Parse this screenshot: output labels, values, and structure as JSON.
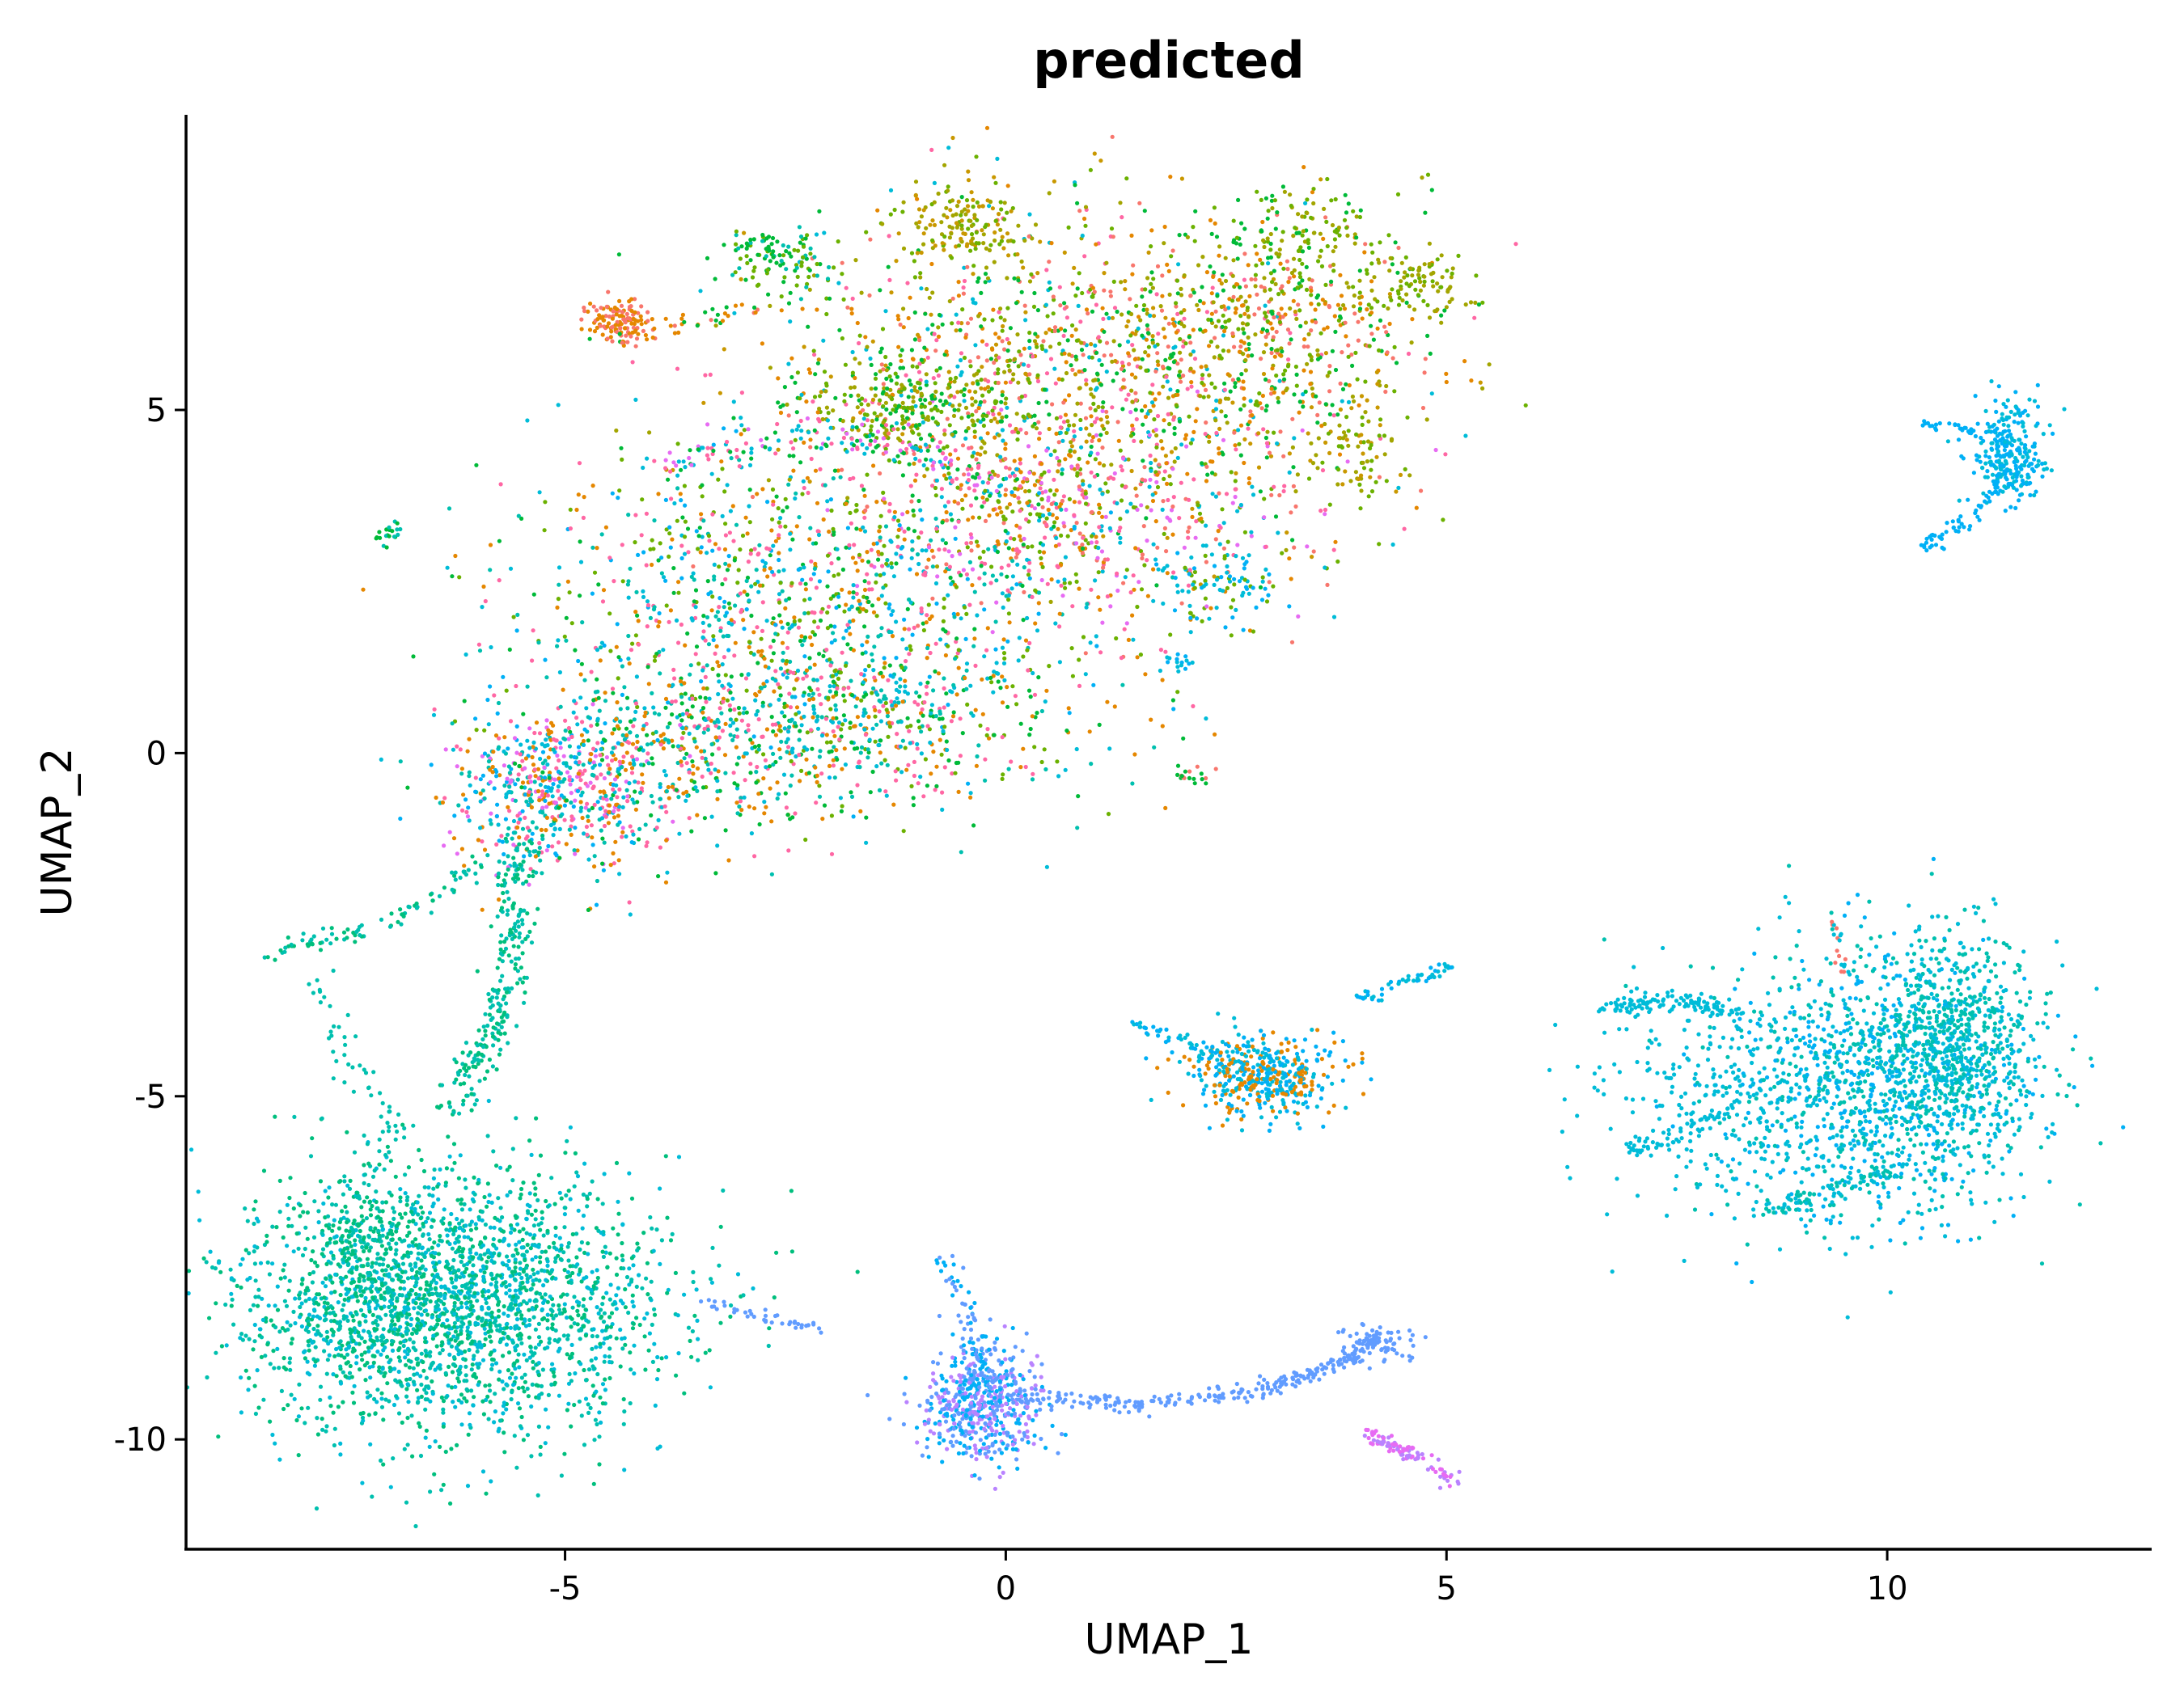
{
  "chart_data": {
    "type": "scatter",
    "title": "predicted",
    "xlabel": "UMAP_1",
    "ylabel": "UMAP_2",
    "xlim": [
      -9.3,
      13.0
    ],
    "ylim": [
      -11.6,
      9.3
    ],
    "xticks": [
      -5,
      0,
      5,
      10
    ],
    "yticks": [
      5,
      0,
      -5,
      -10
    ],
    "xtick_labels": [
      "-5",
      "0",
      "5",
      "10"
    ],
    "ytick_labels": [
      "5",
      "0",
      "-5",
      "-10"
    ],
    "legend": "none",
    "grid": false,
    "point_size": "small",
    "palette": [
      "#F8766D",
      "#E58700",
      "#C99800",
      "#A3A500",
      "#6BB100",
      "#00BA38",
      "#00BF7D",
      "#00C0AF",
      "#00BCD8",
      "#00B0F6",
      "#619CFF",
      "#B983FF",
      "#E76BF3",
      "#FD61D1",
      "#FF67A4"
    ],
    "clusters": [
      {
        "cx": 0.5,
        "cy": 5.5,
        "sx": 1.7,
        "sy": 1.2,
        "n": 1300,
        "colors": [
          "#F8766D",
          "#E58700",
          "#A3A500",
          "#6BB100",
          "#00BA38",
          "#C99800",
          "#FF67A4",
          "#00BCD8"
        ]
      },
      {
        "cx": 3.0,
        "cy": 6.2,
        "sx": 1.0,
        "sy": 0.8,
        "n": 500,
        "colors": [
          "#A3A500",
          "#6BB100",
          "#E58700",
          "#00BA38",
          "#F8766D"
        ]
      },
      {
        "cx": 0.8,
        "cy": 3.4,
        "sx": 1.4,
        "sy": 0.8,
        "n": 600,
        "colors": [
          "#FF67A4",
          "#E76BF3",
          "#F8766D",
          "#00BCD8",
          "#6BB100",
          "#E58700"
        ]
      },
      {
        "cx": -2.3,
        "cy": 2.3,
        "sx": 1.6,
        "sy": 1.1,
        "n": 1000,
        "colors": [
          "#00BCD8",
          "#00C0AF",
          "#00BA38",
          "#FF67A4",
          "#6BB100",
          "#E58700",
          "#00B0F6"
        ]
      },
      {
        "cx": -1.8,
        "cy": 0.6,
        "sx": 1.5,
        "sy": 0.7,
        "n": 700,
        "colors": [
          "#00BCD8",
          "#00C0AF",
          "#00BA38",
          "#FF67A4",
          "#E58700",
          "#6BB100"
        ]
      },
      {
        "cx": -5.2,
        "cy": -0.6,
        "sx": 0.55,
        "sy": 0.55,
        "n": 500,
        "colors": [
          "#00BCD8",
          "#00B0F6",
          "#FF67A4",
          "#E58700",
          "#00C0AF",
          "#E76BF3"
        ]
      },
      {
        "cx": -3.8,
        "cy": -0.2,
        "sx": 0.9,
        "sy": 0.7,
        "n": 350,
        "colors": [
          "#00BCD8",
          "#00C0AF",
          "#00BA38",
          "#FF67A4",
          "#E58700"
        ]
      },
      {
        "cx": -0.4,
        "cy": 7.7,
        "sx": 0.35,
        "sy": 0.3,
        "n": 150,
        "colors": [
          "#A3A500",
          "#6BB100",
          "#C99800"
        ]
      },
      {
        "cx": 3.3,
        "cy": 7.6,
        "sx": 0.4,
        "sy": 0.3,
        "n": 110,
        "colors": [
          "#A3A500",
          "#6BB100",
          "#00BA38"
        ]
      },
      {
        "cx": -2.6,
        "cy": 7.2,
        "sx": 0.3,
        "sy": 0.25,
        "n": 110,
        "colors": [
          "#00BA38",
          "#00C0AF",
          "#6BB100"
        ]
      },
      {
        "cx": -4.4,
        "cy": 6.3,
        "sx": 0.18,
        "sy": 0.15,
        "n": 120,
        "colors": [
          "#E58700",
          "#F8766D"
        ]
      },
      {
        "cx": 4.7,
        "cy": 6.9,
        "sx": 0.3,
        "sy": 0.2,
        "n": 80,
        "colors": [
          "#A3A500",
          "#6BB100"
        ]
      },
      {
        "cx": 4.0,
        "cy": 4.5,
        "sx": 0.25,
        "sy": 0.5,
        "n": 80,
        "colors": [
          "#A3A500",
          "#6BB100",
          "#C99800"
        ]
      },
      {
        "cx": -1.0,
        "cy": 5.1,
        "sx": 0.6,
        "sy": 0.25,
        "n": 200,
        "colors": [
          "#6BB100",
          "#A3A500",
          "#00BA38"
        ]
      },
      {
        "cx": 2.5,
        "cy": 2.4,
        "sx": 0.35,
        "sy": 0.3,
        "n": 80,
        "colors": [
          "#00BCD8",
          "#00B0F6",
          "#6BB100"
        ]
      },
      {
        "cx": -7.0,
        "cy": 3.2,
        "sx": 0.1,
        "sy": 0.08,
        "n": 20,
        "colors": [
          "#00BA38",
          "#00C0AF"
        ]
      },
      {
        "cx": 2.1,
        "cy": -0.3,
        "sx": 0.12,
        "sy": 0.1,
        "n": 18,
        "colors": [
          "#00BA38",
          "#F8766D"
        ]
      },
      {
        "cx": 2.0,
        "cy": 1.3,
        "sx": 0.1,
        "sy": 0.08,
        "n": 15,
        "colors": [
          "#00BCD8",
          "#00B0F6"
        ]
      },
      {
        "cx": -6.3,
        "cy": -8.0,
        "sx": 1.2,
        "sy": 0.95,
        "n": 2300,
        "colors": [
          "#00C0AF",
          "#00BF7D",
          "#00BCD8"
        ]
      },
      {
        "cx": -7.2,
        "cy": -7.4,
        "sx": 0.4,
        "sy": 0.7,
        "n": 300,
        "colors": [
          "#00C0AF",
          "#00BF7D"
        ]
      },
      {
        "cx": 2.9,
        "cy": -4.7,
        "sx": 0.45,
        "sy": 0.3,
        "n": 450,
        "colors": [
          "#00B0F6",
          "#00BCD8",
          "#E58700"
        ]
      },
      {
        "cx": 9.9,
        "cy": -4.8,
        "sx": 0.9,
        "sy": 1.0,
        "n": 1100,
        "colors": [
          "#00BCD8",
          "#00C0AF",
          "#00B0F6"
        ]
      },
      {
        "cx": 10.8,
        "cy": -4.2,
        "sx": 0.45,
        "sy": 0.8,
        "n": 600,
        "colors": [
          "#00BCD8",
          "#00C0AF"
        ]
      },
      {
        "cx": 8.4,
        "cy": -5.0,
        "sx": 1.0,
        "sy": 0.9,
        "n": 300,
        "colors": [
          "#00BCD8"
        ]
      },
      {
        "cx": 11.4,
        "cy": 4.4,
        "sx": 0.2,
        "sy": 0.35,
        "n": 260,
        "colors": [
          "#00B0F6",
          "#00BCD8"
        ]
      },
      {
        "cx": -0.3,
        "cy": -9.5,
        "sx": 0.35,
        "sy": 0.4,
        "n": 550,
        "colors": [
          "#619CFF",
          "#B983FF",
          "#00B0F6"
        ]
      },
      {
        "cx": 4.2,
        "cy": -8.6,
        "sx": 0.25,
        "sy": 0.15,
        "n": 60,
        "colors": [
          "#619CFF"
        ]
      }
    ],
    "trails": [
      {
        "path": [
          [
            -5.5,
            -1.2
          ],
          [
            -5.6,
            -2.8
          ],
          [
            -5.8,
            -4.0
          ],
          [
            -6.3,
            -5.2
          ]
        ],
        "spread": 0.12,
        "n": 260,
        "colors": [
          "#00C0AF",
          "#00BF7D"
        ]
      },
      {
        "path": [
          [
            -5.8,
            -1.5
          ],
          [
            -7.0,
            -2.5
          ],
          [
            -8.3,
            -2.9
          ]
        ],
        "spread": 0.07,
        "n": 90,
        "colors": [
          "#00C0AF",
          "#00BF7D"
        ]
      },
      {
        "path": [
          [
            -7.8,
            -3.2
          ],
          [
            -7.4,
            -4.6
          ],
          [
            -6.9,
            -5.6
          ]
        ],
        "spread": 0.1,
        "n": 50,
        "colors": [
          "#00C0AF"
        ]
      },
      {
        "path": [
          [
            -0.7,
            -7.4
          ],
          [
            -0.3,
            -8.5
          ],
          [
            -0.2,
            -9.3
          ]
        ],
        "spread": 0.08,
        "n": 90,
        "colors": [
          "#619CFF",
          "#00B0F6"
        ]
      },
      {
        "path": [
          [
            0.2,
            -9.4
          ],
          [
            1.5,
            -9.5
          ],
          [
            2.8,
            -9.3
          ],
          [
            3.6,
            -9.0
          ],
          [
            4.3,
            -8.5
          ]
        ],
        "spread": 0.07,
        "n": 260,
        "colors": [
          "#619CFF"
        ]
      },
      {
        "path": [
          [
            4.1,
            -9.9
          ],
          [
            4.6,
            -10.2
          ],
          [
            5.1,
            -10.6
          ]
        ],
        "spread": 0.06,
        "n": 100,
        "colors": [
          "#B983FF",
          "#E76BF3"
        ]
      },
      {
        "path": [
          [
            -3.4,
            -8.0
          ],
          [
            -2.8,
            -8.2
          ],
          [
            -2.1,
            -8.4
          ]
        ],
        "spread": 0.05,
        "n": 40,
        "colors": [
          "#619CFF"
        ]
      },
      {
        "path": [
          [
            4.0,
            -3.6
          ],
          [
            4.6,
            -3.3
          ],
          [
            5.1,
            -3.1
          ]
        ],
        "spread": 0.05,
        "n": 50,
        "colors": [
          "#00B0F6",
          "#00BCD8"
        ]
      },
      {
        "path": [
          [
            1.4,
            -3.9
          ],
          [
            2.0,
            -4.2
          ],
          [
            2.6,
            -4.4
          ]
        ],
        "spread": 0.05,
        "n": 40,
        "colors": [
          "#00BCD8",
          "#00B0F6"
        ]
      },
      {
        "path": [
          [
            6.8,
            -3.7
          ],
          [
            7.6,
            -3.6
          ],
          [
            8.3,
            -3.8
          ]
        ],
        "spread": 0.08,
        "n": 120,
        "colors": [
          "#00BCD8"
        ]
      },
      {
        "path": [
          [
            7.0,
            -5.8
          ],
          [
            7.6,
            -5.6
          ],
          [
            8.2,
            -5.2
          ]
        ],
        "spread": 0.06,
        "n": 60,
        "colors": [
          "#00BCD8"
        ]
      },
      {
        "path": [
          [
            8.6,
            -6.7
          ],
          [
            9.4,
            -6.4
          ],
          [
            10.2,
            -6.0
          ]
        ],
        "spread": 0.08,
        "n": 90,
        "colors": [
          "#00BCD8",
          "#00C0AF"
        ]
      },
      {
        "path": [
          [
            10.4,
            3.0
          ],
          [
            10.9,
            3.4
          ],
          [
            11.3,
            4.0
          ]
        ],
        "spread": 0.06,
        "n": 60,
        "colors": [
          "#00B0F6"
        ]
      },
      {
        "path": [
          [
            10.4,
            4.8
          ],
          [
            10.9,
            4.7
          ],
          [
            11.3,
            4.6
          ]
        ],
        "spread": 0.04,
        "n": 30,
        "colors": [
          "#00B0F6"
        ]
      },
      {
        "path": [
          [
            -4.4,
            6.0
          ],
          [
            -3.5,
            6.3
          ],
          [
            -2.7,
            6.5
          ]
        ],
        "spread": 0.08,
        "n": 40,
        "colors": [
          "#E58700",
          "#F8766D",
          "#00BA38"
        ]
      },
      {
        "path": [
          [
            9.4,
            -2.4
          ],
          [
            9.5,
            -3.2
          ]
        ],
        "spread": 0.04,
        "n": 18,
        "colors": [
          "#00BCD8",
          "#F8766D"
        ]
      },
      {
        "path": [
          [
            -4.0,
            4.2
          ],
          [
            -2.5,
            4.7
          ],
          [
            -1.2,
            4.5
          ],
          [
            0.0,
            3.8
          ]
        ],
        "spread": 0.12,
        "n": 160,
        "colors": [
          "#00BCD8",
          "#FF67A4",
          "#00BA38",
          "#E76BF3"
        ]
      }
    ]
  }
}
